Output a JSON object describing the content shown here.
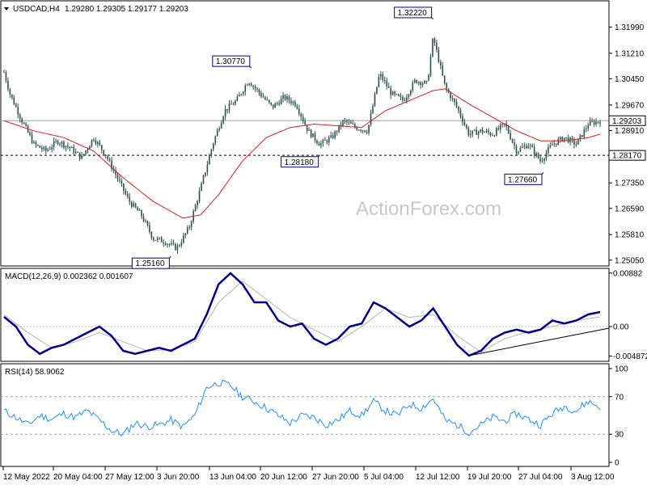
{
  "chart_data": [
    {
      "type": "candlestick",
      "panel": "price",
      "symbol_header": "USDCAD,H4",
      "ohlc_header": "1.29280 1.29305 1.29177 1.29203",
      "ylim": [
        1.249,
        1.327
      ],
      "y_ticks": [
        "1.31990",
        "1.31210",
        "1.30450",
        "1.29670",
        "1.28910",
        "1.28170",
        "1.27350",
        "1.26590",
        "1.25810",
        "1.25050"
      ],
      "current_price": "1.29203",
      "support_line": "1.28170",
      "annotations": [
        {
          "label": "1.25160",
          "price": 1.2516,
          "x_frac": 0.28
        },
        {
          "label": "1.30770",
          "price": 1.3077,
          "x_frac": 0.415
        },
        {
          "label": "1.28180",
          "price": 1.2818,
          "x_frac": 0.53
        },
        {
          "label": "1.32220",
          "price": 1.3222,
          "x_frac": 0.72
        },
        {
          "label": "1.27660",
          "price": 1.2766,
          "x_frac": 0.905
        }
      ],
      "price_path": [
        [
          0.0,
          1.3065
        ],
        [
          0.01,
          1.3
        ],
        [
          0.02,
          1.296
        ],
        [
          0.03,
          1.292
        ],
        [
          0.05,
          1.285
        ],
        [
          0.07,
          1.283
        ],
        [
          0.09,
          1.286
        ],
        [
          0.11,
          1.284
        ],
        [
          0.13,
          1.281
        ],
        [
          0.15,
          1.287
        ],
        [
          0.17,
          1.282
        ],
        [
          0.19,
          1.275
        ],
        [
          0.21,
          1.268
        ],
        [
          0.23,
          1.264
        ],
        [
          0.25,
          1.257
        ],
        [
          0.27,
          1.256
        ],
        [
          0.29,
          1.254
        ],
        [
          0.31,
          1.26
        ],
        [
          0.33,
          1.272
        ],
        [
          0.35,
          1.285
        ],
        [
          0.37,
          1.295
        ],
        [
          0.39,
          1.298
        ],
        [
          0.41,
          1.304
        ],
        [
          0.43,
          1.3
        ],
        [
          0.45,
          1.296
        ],
        [
          0.47,
          1.299
        ],
        [
          0.49,
          1.297
        ],
        [
          0.51,
          1.289
        ],
        [
          0.53,
          1.285
        ],
        [
          0.55,
          1.287
        ],
        [
          0.57,
          1.292
        ],
        [
          0.59,
          1.29
        ],
        [
          0.61,
          1.289
        ],
        [
          0.63,
          1.306
        ],
        [
          0.65,
          1.3
        ],
        [
          0.67,
          1.298
        ],
        [
          0.69,
          1.304
        ],
        [
          0.71,
          1.303
        ],
        [
          0.72,
          1.317
        ],
        [
          0.74,
          1.302
        ],
        [
          0.76,
          1.296
        ],
        [
          0.78,
          1.288
        ],
        [
          0.8,
          1.289
        ],
        [
          0.82,
          1.288
        ],
        [
          0.84,
          1.291
        ],
        [
          0.86,
          1.283
        ],
        [
          0.88,
          1.285
        ],
        [
          0.9,
          1.28
        ],
        [
          0.92,
          1.285
        ],
        [
          0.94,
          1.287
        ],
        [
          0.96,
          1.285
        ],
        [
          0.98,
          1.291
        ],
        [
          1.0,
          1.292
        ]
      ],
      "ma_path": [
        [
          0.0,
          1.292
        ],
        [
          0.05,
          1.289
        ],
        [
          0.1,
          1.287
        ],
        [
          0.15,
          1.283
        ],
        [
          0.2,
          1.275
        ],
        [
          0.25,
          1.268
        ],
        [
          0.3,
          1.263
        ],
        [
          0.33,
          1.264
        ],
        [
          0.36,
          1.27
        ],
        [
          0.4,
          1.28
        ],
        [
          0.44,
          1.287
        ],
        [
          0.48,
          1.29
        ],
        [
          0.52,
          1.291
        ],
        [
          0.56,
          1.2905
        ],
        [
          0.6,
          1.29
        ],
        [
          0.64,
          1.295
        ],
        [
          0.68,
          1.298
        ],
        [
          0.72,
          1.301
        ],
        [
          0.74,
          1.3015
        ],
        [
          0.78,
          1.297
        ],
        [
          0.82,
          1.293
        ],
        [
          0.86,
          1.289
        ],
        [
          0.9,
          1.286
        ],
        [
          0.94,
          1.286
        ],
        [
          0.98,
          1.287
        ],
        [
          1.0,
          1.288
        ]
      ]
    },
    {
      "type": "line",
      "panel": "macd",
      "header": "MACD(12,26,9) 0.002362 0.001607",
      "ylim": [
        -0.0056,
        0.0092
      ],
      "y_ticks": [
        "0.00882",
        "0.00",
        "-0.004872"
      ],
      "macd_path": [
        [
          0.0,
          0.0016
        ],
        [
          0.02,
          0.0
        ],
        [
          0.04,
          -0.003
        ],
        [
          0.06,
          -0.0045
        ],
        [
          0.08,
          -0.0035
        ],
        [
          0.1,
          -0.003
        ],
        [
          0.12,
          -0.002
        ],
        [
          0.14,
          -0.001
        ],
        [
          0.16,
          0.0
        ],
        [
          0.18,
          -0.0015
        ],
        [
          0.2,
          -0.004
        ],
        [
          0.22,
          -0.0045
        ],
        [
          0.24,
          -0.004
        ],
        [
          0.26,
          -0.0035
        ],
        [
          0.28,
          -0.004
        ],
        [
          0.3,
          -0.003
        ],
        [
          0.32,
          -0.002
        ],
        [
          0.34,
          0.002
        ],
        [
          0.36,
          0.007
        ],
        [
          0.38,
          0.0088
        ],
        [
          0.4,
          0.007
        ],
        [
          0.42,
          0.004
        ],
        [
          0.44,
          0.004
        ],
        [
          0.46,
          0.001
        ],
        [
          0.48,
          0.0
        ],
        [
          0.5,
          0.0005
        ],
        [
          0.52,
          -0.002
        ],
        [
          0.54,
          -0.003
        ],
        [
          0.56,
          -0.002
        ],
        [
          0.58,
          0.0
        ],
        [
          0.6,
          0.0005
        ],
        [
          0.62,
          0.004
        ],
        [
          0.64,
          0.003
        ],
        [
          0.66,
          0.0015
        ],
        [
          0.68,
          0.0
        ],
        [
          0.7,
          0.001
        ],
        [
          0.72,
          0.003
        ],
        [
          0.74,
          0.0
        ],
        [
          0.76,
          -0.003
        ],
        [
          0.78,
          -0.0048
        ],
        [
          0.8,
          -0.004
        ],
        [
          0.82,
          -0.002
        ],
        [
          0.84,
          -0.001
        ],
        [
          0.86,
          -0.0005
        ],
        [
          0.88,
          -0.001
        ],
        [
          0.9,
          -0.0005
        ],
        [
          0.92,
          0.001
        ],
        [
          0.94,
          0.0005
        ],
        [
          0.96,
          0.001
        ],
        [
          0.98,
          0.002
        ],
        [
          1.0,
          0.0024
        ]
      ],
      "signal_path": [
        [
          0.0,
          0.002
        ],
        [
          0.04,
          -0.001
        ],
        [
          0.08,
          -0.0035
        ],
        [
          0.12,
          -0.0025
        ],
        [
          0.16,
          -0.001
        ],
        [
          0.2,
          -0.0025
        ],
        [
          0.24,
          -0.004
        ],
        [
          0.28,
          -0.0038
        ],
        [
          0.32,
          -0.0025
        ],
        [
          0.36,
          0.004
        ],
        [
          0.4,
          0.0075
        ],
        [
          0.44,
          0.0045
        ],
        [
          0.48,
          0.0015
        ],
        [
          0.52,
          -0.0005
        ],
        [
          0.56,
          -0.0025
        ],
        [
          0.6,
          0.0
        ],
        [
          0.64,
          0.003
        ],
        [
          0.68,
          0.0015
        ],
        [
          0.72,
          0.002
        ],
        [
          0.76,
          -0.0015
        ],
        [
          0.8,
          -0.0042
        ],
        [
          0.84,
          -0.002
        ],
        [
          0.88,
          -0.0008
        ],
        [
          0.92,
          0.0
        ],
        [
          0.96,
          0.001
        ],
        [
          1.0,
          0.0016
        ]
      ],
      "trendline": [
        [
          0.78,
          -0.0048
        ],
        [
          1.0,
          0.0
        ]
      ]
    },
    {
      "type": "line",
      "panel": "rsi",
      "header": "RSI(14) 58.9062",
      "ylim": [
        0,
        100
      ],
      "y_ticks": [
        "100",
        "70",
        "30",
        "0"
      ],
      "rsi_path": [
        [
          0.0,
          55
        ],
        [
          0.02,
          48
        ],
        [
          0.04,
          40
        ],
        [
          0.06,
          50
        ],
        [
          0.08,
          46
        ],
        [
          0.1,
          52
        ],
        [
          0.12,
          48
        ],
        [
          0.14,
          55
        ],
        [
          0.16,
          45
        ],
        [
          0.18,
          34
        ],
        [
          0.2,
          30
        ],
        [
          0.22,
          42
        ],
        [
          0.24,
          38
        ],
        [
          0.26,
          40
        ],
        [
          0.28,
          45
        ],
        [
          0.3,
          38
        ],
        [
          0.32,
          50
        ],
        [
          0.34,
          80
        ],
        [
          0.36,
          85
        ],
        [
          0.38,
          82
        ],
        [
          0.4,
          70
        ],
        [
          0.42,
          65
        ],
        [
          0.44,
          58
        ],
        [
          0.46,
          50
        ],
        [
          0.48,
          42
        ],
        [
          0.5,
          50
        ],
        [
          0.52,
          48
        ],
        [
          0.54,
          40
        ],
        [
          0.56,
          45
        ],
        [
          0.58,
          55
        ],
        [
          0.6,
          50
        ],
        [
          0.62,
          65
        ],
        [
          0.64,
          55
        ],
        [
          0.66,
          50
        ],
        [
          0.68,
          62
        ],
        [
          0.7,
          58
        ],
        [
          0.72,
          68
        ],
        [
          0.74,
          45
        ],
        [
          0.76,
          40
        ],
        [
          0.78,
          32
        ],
        [
          0.8,
          40
        ],
        [
          0.82,
          48
        ],
        [
          0.84,
          44
        ],
        [
          0.86,
          52
        ],
        [
          0.88,
          46
        ],
        [
          0.9,
          40
        ],
        [
          0.92,
          52
        ],
        [
          0.94,
          60
        ],
        [
          0.96,
          55
        ],
        [
          0.98,
          65
        ],
        [
          1.0,
          59
        ]
      ]
    }
  ],
  "x_axis_labels": [
    "12 May 2022",
    "20 May 04:00",
    "27 May 12:00",
    "3 Jun 20:00",
    "13 Jun 04:00",
    "20 Jun 12:00",
    "27 Jun 20:00",
    "5 Jul 04:00",
    "12 Jul 12:00",
    "19 Jul 20:00",
    "27 Jul 04:00",
    "3 Aug 12:00"
  ],
  "watermark": "ActionForex.com",
  "colors": {
    "candle": "#2f4f4f",
    "ma": "#dc1e1e",
    "macd": "#00008b",
    "signal": "#b4b4b4",
    "rsi": "#1e90ff",
    "price_box_bg": "#ffffff",
    "grid": "#000000"
  }
}
